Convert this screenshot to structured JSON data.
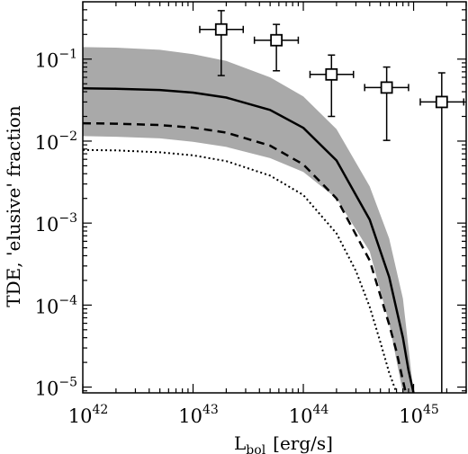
{
  "chart_data": {
    "type": "line",
    "xlabel": "L",
    "xlabel_sub": "bol",
    "xlabel_unit": "[erg/s]",
    "ylabel": "TDE, 'elusive' fraction",
    "xscale": "log",
    "yscale": "log",
    "xlim": [
      1e+42,
      3e+45
    ],
    "ylim": [
      8.5e-06,
      0.5
    ],
    "x_ticks": [
      {
        "value": 1e+42,
        "base": "10",
        "exp": "42"
      },
      {
        "value": 1e+43,
        "base": "10",
        "exp": "43"
      },
      {
        "value": 1e+44,
        "base": "10",
        "exp": "44"
      },
      {
        "value": 1e+45,
        "base": "10",
        "exp": "45"
      }
    ],
    "y_ticks": [
      {
        "value": 1e-05,
        "base": "10",
        "exp": "−5"
      },
      {
        "value": 0.0001,
        "base": "10",
        "exp": "−4"
      },
      {
        "value": 0.001,
        "base": "10",
        "exp": "−3"
      },
      {
        "value": 0.01,
        "base": "10",
        "exp": "−2"
      },
      {
        "value": 0.1,
        "base": "10",
        "exp": "−1"
      }
    ],
    "band": {
      "color": "#a9a9a9",
      "x": [
        1e+42,
        2e+42,
        5e+42,
        1e+43,
        2e+43,
        5e+43,
        1e+44,
        2e+44,
        4e+44,
        6e+44,
        8e+44,
        1e+45
      ],
      "upper": [
        0.14,
        0.138,
        0.13,
        0.115,
        0.095,
        0.06,
        0.035,
        0.014,
        0.0028,
        0.00065,
        0.00012,
        8.5e-06
      ],
      "lower": [
        0.0115,
        0.0113,
        0.0108,
        0.0098,
        0.0085,
        0.0062,
        0.0042,
        0.002,
        0.00045,
        6e-05,
        8.5e-06,
        8.5e-06
      ]
    },
    "series": [
      {
        "style": "solid",
        "x": [
          1e+42,
          2e+42,
          5e+42,
          1e+43,
          2e+43,
          5e+43,
          1e+44,
          2e+44,
          4e+44,
          6e+44,
          8e+44,
          9e+44,
          1e+45
        ],
        "y": [
          0.044,
          0.0435,
          0.042,
          0.039,
          0.034,
          0.024,
          0.0145,
          0.0058,
          0.0011,
          0.00022,
          4e-05,
          1.6e-05,
          8.5e-06
        ]
      },
      {
        "style": "dashed",
        "x": [
          1e+42,
          2e+42,
          5e+42,
          1e+43,
          2e+43,
          5e+43,
          1e+44,
          2e+44,
          4e+44,
          6e+44,
          7e+44,
          8e+44,
          8.5e+44
        ],
        "y": [
          0.0165,
          0.0163,
          0.0157,
          0.0146,
          0.0127,
          0.0088,
          0.0052,
          0.002,
          0.00035,
          5.8e-05,
          2.7e-05,
          1.2e-05,
          8.5e-06
        ]
      },
      {
        "style": "dotted",
        "x": [
          1e+42,
          2e+42,
          5e+42,
          1e+43,
          2e+43,
          5e+43,
          1e+44,
          2e+44,
          3e+44,
          4e+44,
          5e+44,
          6e+44,
          7e+44
        ],
        "y": [
          0.0078,
          0.0077,
          0.0073,
          0.0067,
          0.0057,
          0.0038,
          0.0022,
          0.00075,
          0.00026,
          9.5e-05,
          3.5e-05,
          1.5e-05,
          8.5e-06
        ]
      }
    ],
    "points": [
      {
        "x": 1.8e+43,
        "y": 0.23,
        "xerr": [
          1.15e+43,
          2.85e+43
        ],
        "yerr": [
          0.063,
          0.39
        ]
      },
      {
        "x": 5.7e+43,
        "y": 0.17,
        "xerr": [
          3.6e+43,
          9e+43
        ],
        "yerr": [
          0.072,
          0.265
        ]
      },
      {
        "x": 1.8e+44,
        "y": 0.065,
        "xerr": [
          1.15e+44,
          2.85e+44
        ],
        "yerr": [
          0.02,
          0.112
        ]
      },
      {
        "x": 5.7e+44,
        "y": 0.045,
        "xerr": [
          3.6e+44,
          9e+44
        ],
        "yerr": [
          0.0102,
          0.08
        ]
      },
      {
        "x": 1.8e+45,
        "y": 0.03,
        "xerr": [
          1.15e+45,
          2.85e+45
        ],
        "yerr": [
          8.5e-06,
          0.068
        ]
      }
    ]
  }
}
